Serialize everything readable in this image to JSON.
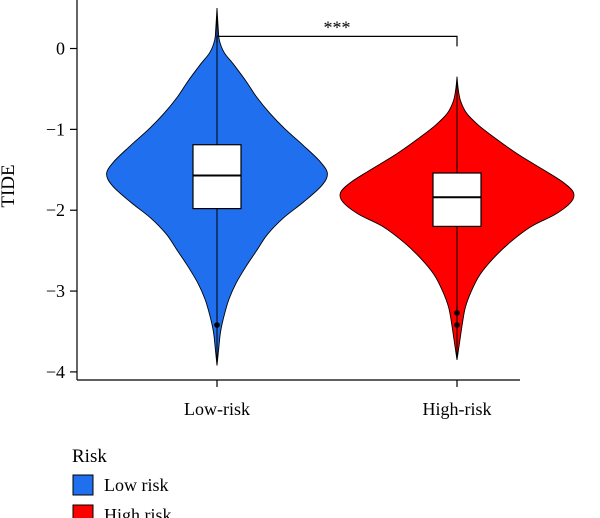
{
  "chart_data": {
    "type": "violin",
    "ylabel": "TIDE",
    "xlabel": "",
    "ylim": [
      -4.1,
      0.6
    ],
    "yticks": [
      0,
      -1,
      -2,
      -3,
      -4
    ],
    "ytick_labels": [
      "0",
      "−1",
      "−2",
      "−3",
      "−4"
    ],
    "categories": [
      "Low-risk",
      "High-risk"
    ],
    "series": [
      {
        "name": "Low risk",
        "color": "#1f6fef",
        "box": {
          "q1": -1.98,
          "median": -1.57,
          "q3": -1.19
        },
        "whisker": [
          -3.92,
          0.5
        ],
        "outliers": [
          -3.42
        ],
        "density": [
          [
            0.5,
            0.0
          ],
          [
            0.25,
            0.01
          ],
          [
            0.1,
            0.02
          ],
          [
            -0.05,
            0.06
          ],
          [
            -0.2,
            0.14
          ],
          [
            -0.4,
            0.24
          ],
          [
            -0.6,
            0.33
          ],
          [
            -0.8,
            0.44
          ],
          [
            -1.0,
            0.57
          ],
          [
            -1.2,
            0.72
          ],
          [
            -1.4,
            0.86
          ],
          [
            -1.55,
            0.92
          ],
          [
            -1.7,
            0.87
          ],
          [
            -1.9,
            0.72
          ],
          [
            -2.1,
            0.55
          ],
          [
            -2.3,
            0.42
          ],
          [
            -2.5,
            0.33
          ],
          [
            -2.7,
            0.24
          ],
          [
            -2.9,
            0.16
          ],
          [
            -3.1,
            0.1
          ],
          [
            -3.3,
            0.06
          ],
          [
            -3.5,
            0.03
          ],
          [
            -3.7,
            0.015
          ],
          [
            -3.92,
            0.0
          ]
        ]
      },
      {
        "name": "High risk",
        "color": "#ff0000",
        "box": {
          "q1": -2.2,
          "median": -1.84,
          "q3": -1.54
        },
        "whisker": [
          -3.85,
          -0.35
        ],
        "outliers": [
          -3.27,
          -3.42
        ],
        "density": [
          [
            -0.35,
            0.0
          ],
          [
            -0.5,
            0.01
          ],
          [
            -0.65,
            0.03
          ],
          [
            -0.8,
            0.08
          ],
          [
            -0.95,
            0.18
          ],
          [
            -1.1,
            0.31
          ],
          [
            -1.3,
            0.5
          ],
          [
            -1.5,
            0.72
          ],
          [
            -1.65,
            0.88
          ],
          [
            -1.78,
            0.97
          ],
          [
            -1.9,
            0.95
          ],
          [
            -2.05,
            0.82
          ],
          [
            -2.2,
            0.62
          ],
          [
            -2.4,
            0.44
          ],
          [
            -2.6,
            0.3
          ],
          [
            -2.8,
            0.19
          ],
          [
            -3.0,
            0.12
          ],
          [
            -3.2,
            0.07
          ],
          [
            -3.4,
            0.045
          ],
          [
            -3.6,
            0.025
          ],
          [
            -3.75,
            0.01
          ],
          [
            -3.85,
            0.0
          ]
        ]
      }
    ],
    "significance": {
      "label": "***",
      "between": [
        "Low-risk",
        "High-risk"
      ],
      "y": 0.15
    },
    "legend": {
      "title": "Risk",
      "placement": "bottom-left",
      "items": [
        {
          "label": "Low risk",
          "color": "#1f6fef"
        },
        {
          "label": "High risk",
          "color": "#ff0000"
        }
      ]
    },
    "grid": false
  }
}
